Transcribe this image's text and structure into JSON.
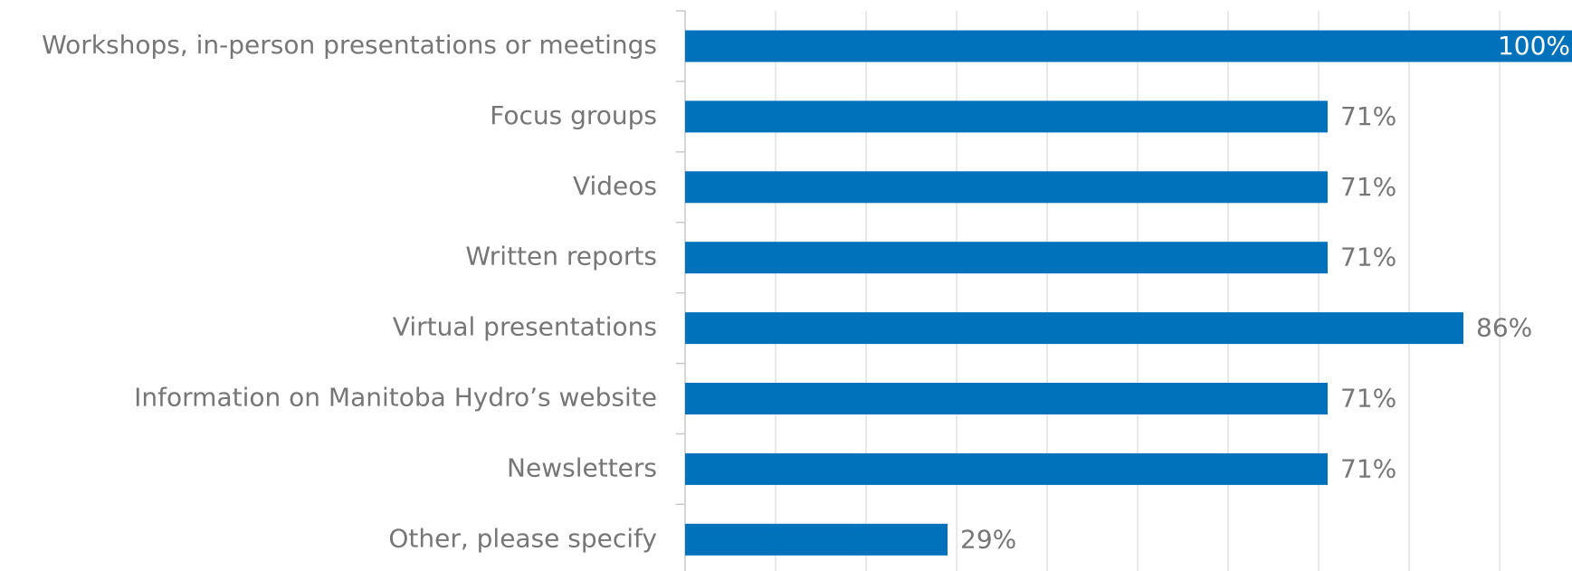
{
  "chart_data": {
    "type": "barh",
    "categories": [
      "Workshops, in-person presentations or meetings",
      "Focus groups",
      "Videos",
      "Written reports",
      "Virtual presentations",
      "Information on Manitoba Hydro’s website",
      "Newsletters",
      "Other, please specify"
    ],
    "values": [
      100,
      71,
      71,
      71,
      86,
      71,
      71,
      29
    ],
    "value_labels": [
      "100%",
      "71%",
      "71%",
      "71%",
      "86%",
      "71%",
      "71%",
      "29%"
    ],
    "color": "#0072bc",
    "xlim": [
      0,
      100
    ],
    "xticks": [
      0,
      10,
      20,
      30,
      40,
      50,
      60,
      70,
      80,
      90,
      100
    ],
    "grid": true
  }
}
